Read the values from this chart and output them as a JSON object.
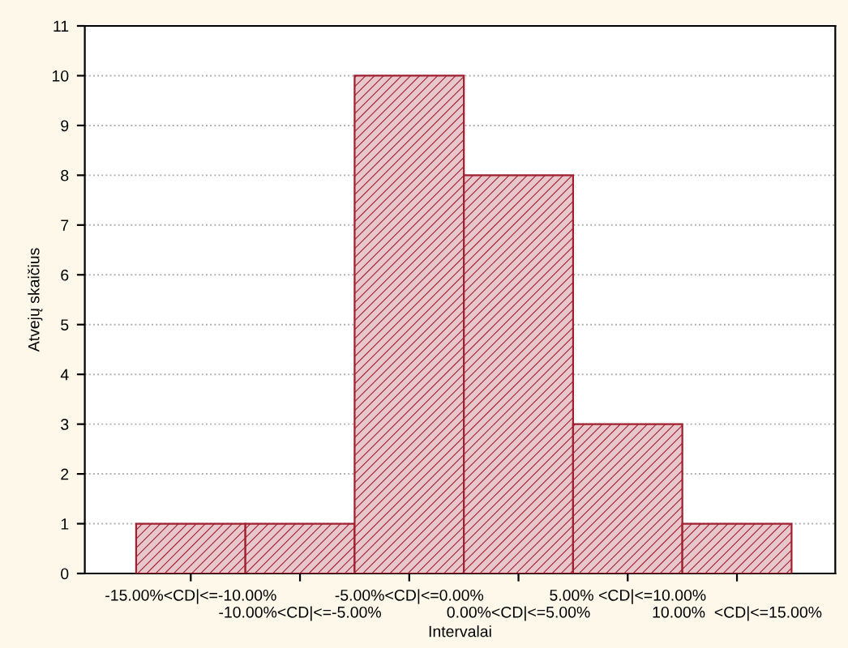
{
  "chart_data": {
    "type": "bar",
    "xlabel": "Intervalai",
    "ylabel": "Atvejų skaičius",
    "categories": [
      "-15.00%<CD|<=-10.00%",
      "-10.00%<CD|<=-5.00%",
      "-5.00%<CD|<=0.00%",
      "0.00%<CD|<=5.00%",
      "5.00% <CD|<=10.00%",
      "10.00%  <CD|<=15.00%"
    ],
    "values": [
      1,
      1,
      10,
      8,
      3,
      1
    ],
    "color": "#a02030",
    "ylim": [
      0,
      11
    ],
    "yticks": [
      0,
      1,
      2,
      3,
      4,
      5,
      6,
      7,
      8,
      9,
      10,
      11
    ],
    "grid": "y",
    "legend": false
  }
}
